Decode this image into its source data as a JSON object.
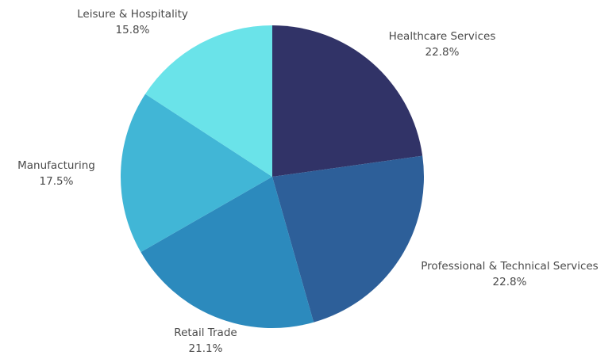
{
  "chart_data": {
    "type": "pie",
    "title": "",
    "start_angle_deg": 0,
    "direction": "clockwise",
    "slices": [
      {
        "label": "Healthcare Services",
        "value": 22.8,
        "value_label": "22.8%",
        "color": "#313367"
      },
      {
        "label": "Professional & Technical Services",
        "value": 22.8,
        "value_label": "22.8%",
        "color": "#2d5f99"
      },
      {
        "label": "Retail Trade",
        "value": 21.1,
        "value_label": "21.1%",
        "color": "#2c8abd"
      },
      {
        "label": "Manufacturing",
        "value": 17.5,
        "value_label": "17.5%",
        "color": "#41b6d6"
      },
      {
        "label": "Leisure & Hospitality",
        "value": 15.8,
        "value_label": "15.8%",
        "color": "#6ae3e9"
      }
    ]
  }
}
